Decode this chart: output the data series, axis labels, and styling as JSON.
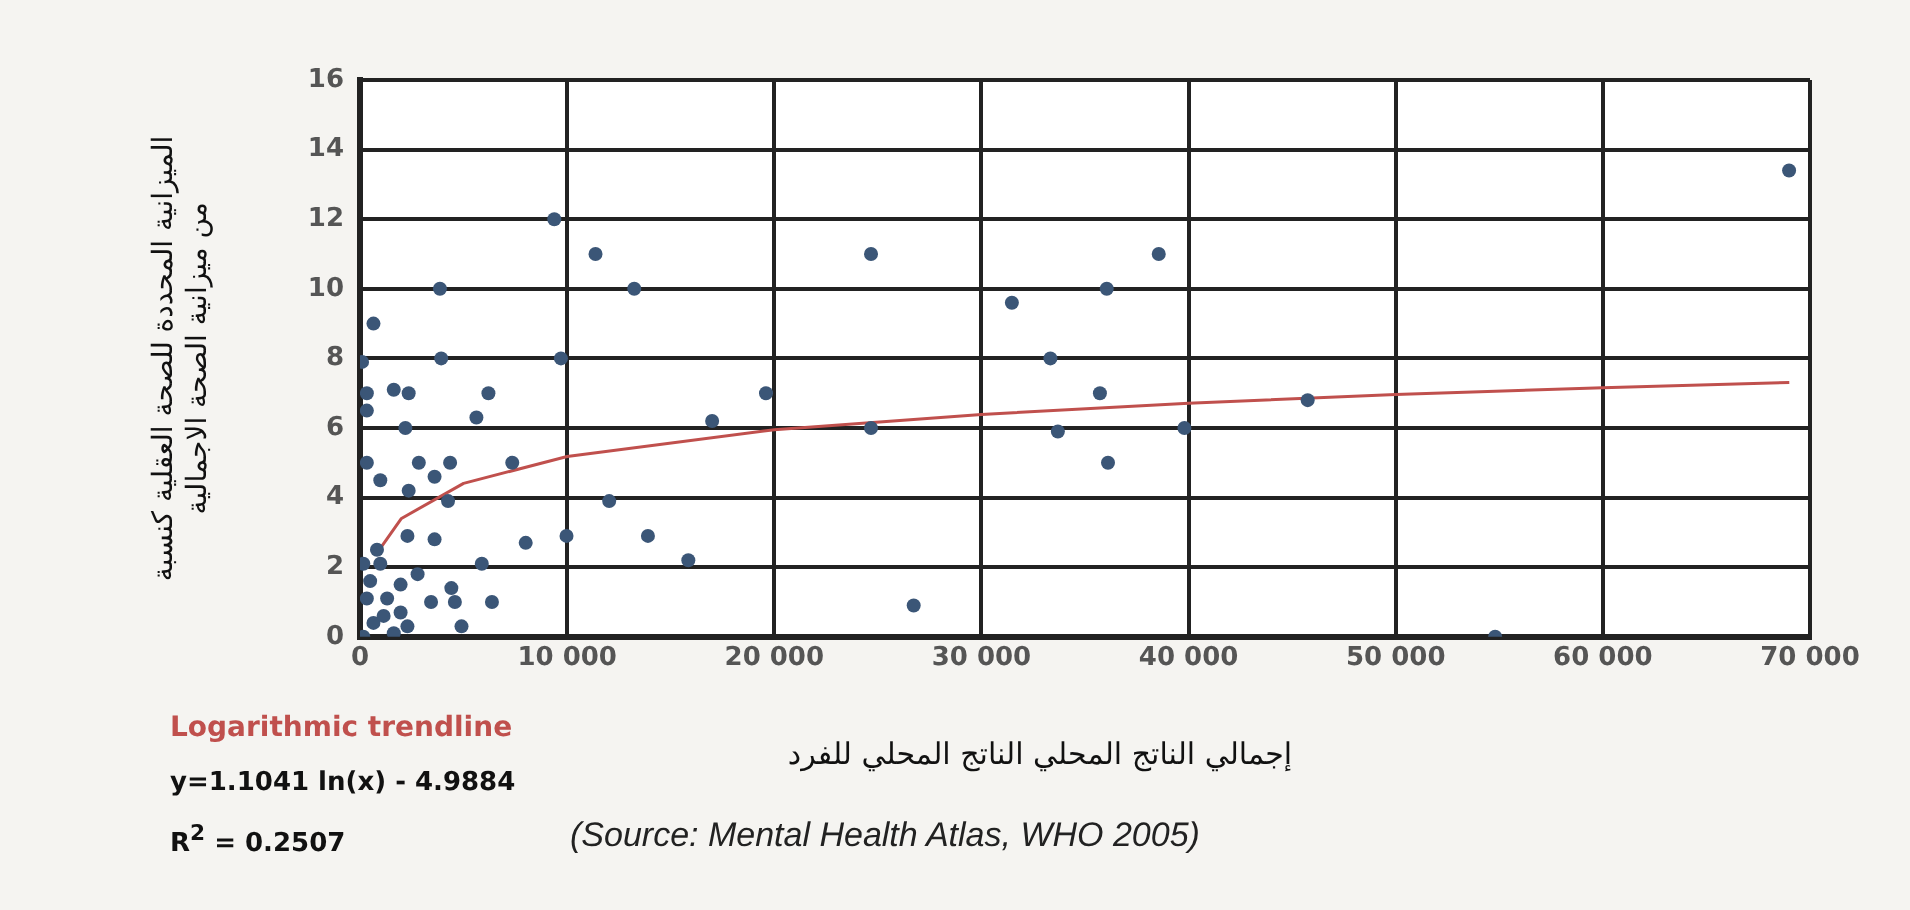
{
  "chart_data": {
    "type": "scatter",
    "ylabel": "الميزانية المحددة للصحة العقلية كنسبة\nمن ميزانية الصحة الاجمالية",
    "xlabel": "إجمالي الناتج المحلي الناتج المحلي للفرد",
    "annotations": [
      "Logarithmic trendline",
      "y=1.1041 ln(x) - 4.9884",
      "R$^{2}$ = 0.2507",
      "(Source: Mental Health Atlas, WHO 2005)"
    ],
    "xlim": [
      0,
      70000
    ],
    "xticks": [
      0,
      {
        "value": 10000,
        "label": "10 000"
      },
      {
        "value": 20000,
        "label": "20 000"
      },
      {
        "value": 30000,
        "label": "30 000"
      },
      {
        "value": 40000,
        "label": "40 000"
      },
      {
        "value": 50000,
        "label": "50 000"
      },
      {
        "value": 60000,
        "label": "60 000"
      },
      {
        "value": 70000,
        "label": "70 000"
      }
    ],
    "ylim": [
      0,
      16
    ],
    "yticks": [
      0,
      2,
      4,
      6,
      8,
      10,
      12,
      14,
      16
    ],
    "grid": true,
    "marker": "circle",
    "series": [
      {
        "color": "#3b5677",
        "x": [
          9380,
          11370,
          13240,
          3860,
          650,
          3920,
          100,
          9700,
          1630,
          2350,
          330,
          6200,
          330,
          5620,
          2190,
          17000,
          19600,
          330,
          2840,
          4350,
          7350,
          980,
          3600,
          2350,
          4250,
          12030,
          2290,
          3600,
          8000,
          9970,
          13900,
          5880,
          15850,
          2780,
          4410,
          3430,
          4580,
          6370,
          4900,
          160,
          980,
          490,
          330,
          1310,
          1960,
          650,
          1630,
          160,
          1140,
          2290,
          820,
          1960,
          24670,
          38560,
          36050,
          31470,
          33330,
          35720,
          24670,
          33690,
          39800,
          36110,
          45750,
          26730,
          54800,
          68990
        ],
        "values": [
          12,
          11,
          10,
          10,
          9,
          8,
          7.9,
          8,
          7.1,
          7,
          7,
          7,
          6.5,
          6.3,
          6,
          6.2,
          7,
          5,
          5,
          5,
          5,
          4.5,
          4.6,
          4.2,
          3.9,
          3.9,
          2.9,
          2.8,
          2.7,
          2.9,
          2.9,
          2.1,
          2.2,
          1.8,
          1.4,
          1,
          1,
          1,
          0.3,
          2.1,
          2.1,
          1.6,
          1.1,
          1.1,
          0.7,
          0.4,
          0.1,
          0,
          0.6,
          0.3,
          2.5,
          1.5,
          11,
          11,
          10,
          9.6,
          8,
          7,
          6,
          5.9,
          6,
          5,
          6.8,
          0.9,
          0,
          13.4
        ]
      },
      {
        "type": "line",
        "color": "#c0504d",
        "marker": "none",
        "x": [
          800,
          2000,
          5000,
          10000,
          20000,
          30000,
          40000,
          50000,
          60000,
          69000
        ],
        "values": [
          2.39,
          3.4,
          4.41,
          5.18,
          5.95,
          6.39,
          6.71,
          6.96,
          7.16,
          7.31
        ]
      }
    ]
  }
}
